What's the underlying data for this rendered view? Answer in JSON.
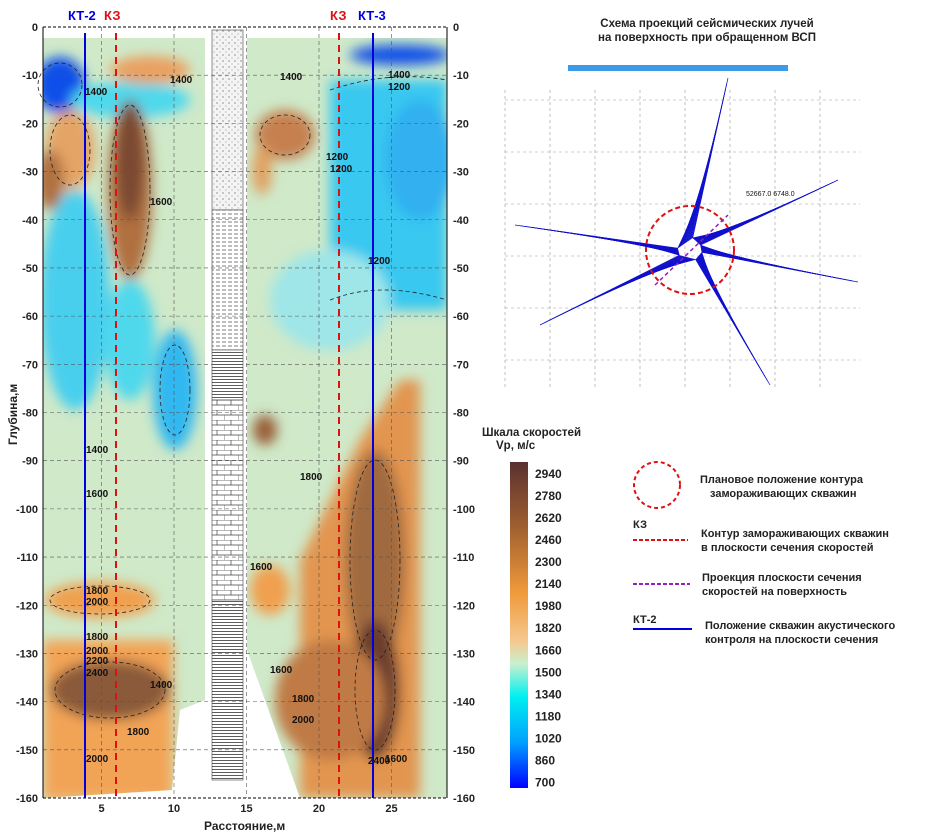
{
  "chart_data": {
    "type": "heatmap",
    "subtype": "velocity-contour-section",
    "xlabel": "Расстояние,м",
    "ylabel": "Глубина,м",
    "xlim": [
      1,
      29
    ],
    "ylim": [
      -160,
      0
    ],
    "x_ticks": [
      "5",
      "10",
      "15",
      "20",
      "25"
    ],
    "y_ticks": [
      "0",
      "-10",
      "-20",
      "-30",
      "-40",
      "-50",
      "-60",
      "-70",
      "-80",
      "-90",
      "-100",
      "-110",
      "-120",
      "-130",
      "-140",
      "-150",
      "-160"
    ],
    "y_ticks_right": [
      "0",
      "-10",
      "-20",
      "-30",
      "-40",
      "-50",
      "-60",
      "-70",
      "-80",
      "-90",
      "-100",
      "-110",
      "-120",
      "-130",
      "-140",
      "-150",
      "-160"
    ],
    "grid": true,
    "well_labels": {
      "kt2": "КТ-2",
      "kz_left": "КЗ",
      "kz_right": "КЗ",
      "kt3": "КТ-3"
    },
    "contour_labels": [
      "1400",
      "1400",
      "1400",
      "1200",
      "1400",
      "1200",
      "1200",
      "1200",
      "1600",
      "1400",
      "1600",
      "1800",
      "2000",
      "1800",
      "2000",
      "2200",
      "2400",
      "1800",
      "2000",
      "1600",
      "1800",
      "2000",
      "2400",
      "1600",
      "1400",
      "1600",
      "1800"
    ],
    "colorbar": {
      "title": "Шкала скоростей",
      "unit": "Vp, м/с",
      "ticks": [
        "2940",
        "2780",
        "2620",
        "2460",
        "2300",
        "2140",
        "1980",
        "1820",
        "1660",
        "1500",
        "1340",
        "1180",
        "1020",
        "860",
        "700"
      ],
      "range": [
        700,
        2940
      ],
      "colors": [
        "#0000ff",
        "#00a8ff",
        "#00f0f0",
        "#c8f0d0",
        "#f5c890",
        "#f09a3a",
        "#a06030",
        "#5a3030"
      ]
    }
  },
  "scheme": {
    "title_line1": "Схема проекций сейсмических лучей",
    "title_line2": "на поверхность при обращенном ВСП",
    "coord_label": "52667.0 6748.0"
  },
  "legend": {
    "circle_text1": "Плановое положение контура",
    "circle_text2": "замораживающих скважин",
    "kz_label": "КЗ",
    "kz_text1": "Контур замораживающих скважин",
    "kz_text2": "в плоскости сечения скоростей",
    "proj_text1": "Проекция плоскости сечения",
    "proj_text2": "скоростей  на поверхность",
    "kt_label": "КТ-2",
    "kt_text1": "Положение скважин акустического",
    "kt_text2": "контроля на плоскости сечения"
  },
  "colors": {
    "well": "#0000dd",
    "kz": "#e01010",
    "projection": "#9020c0",
    "rays": "#1010cc"
  }
}
